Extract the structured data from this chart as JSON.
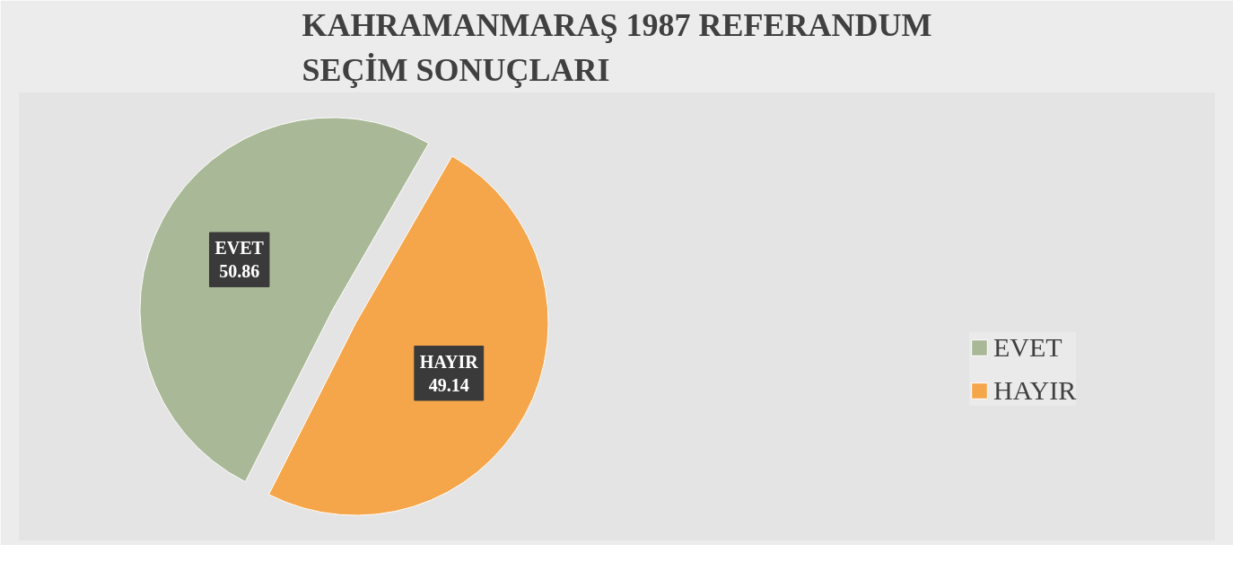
{
  "chart_data": {
    "type": "pie",
    "title": "KAHRAMANMARAŞ 1987 REFERANDUM SEÇİM SONUÇLARI",
    "categories": [
      "EVET",
      "HAYIR"
    ],
    "values": [
      50.86,
      49.14
    ],
    "colors": [
      "#a9b897",
      "#f5a54a"
    ],
    "data_labels": true,
    "legend": "right"
  }
}
